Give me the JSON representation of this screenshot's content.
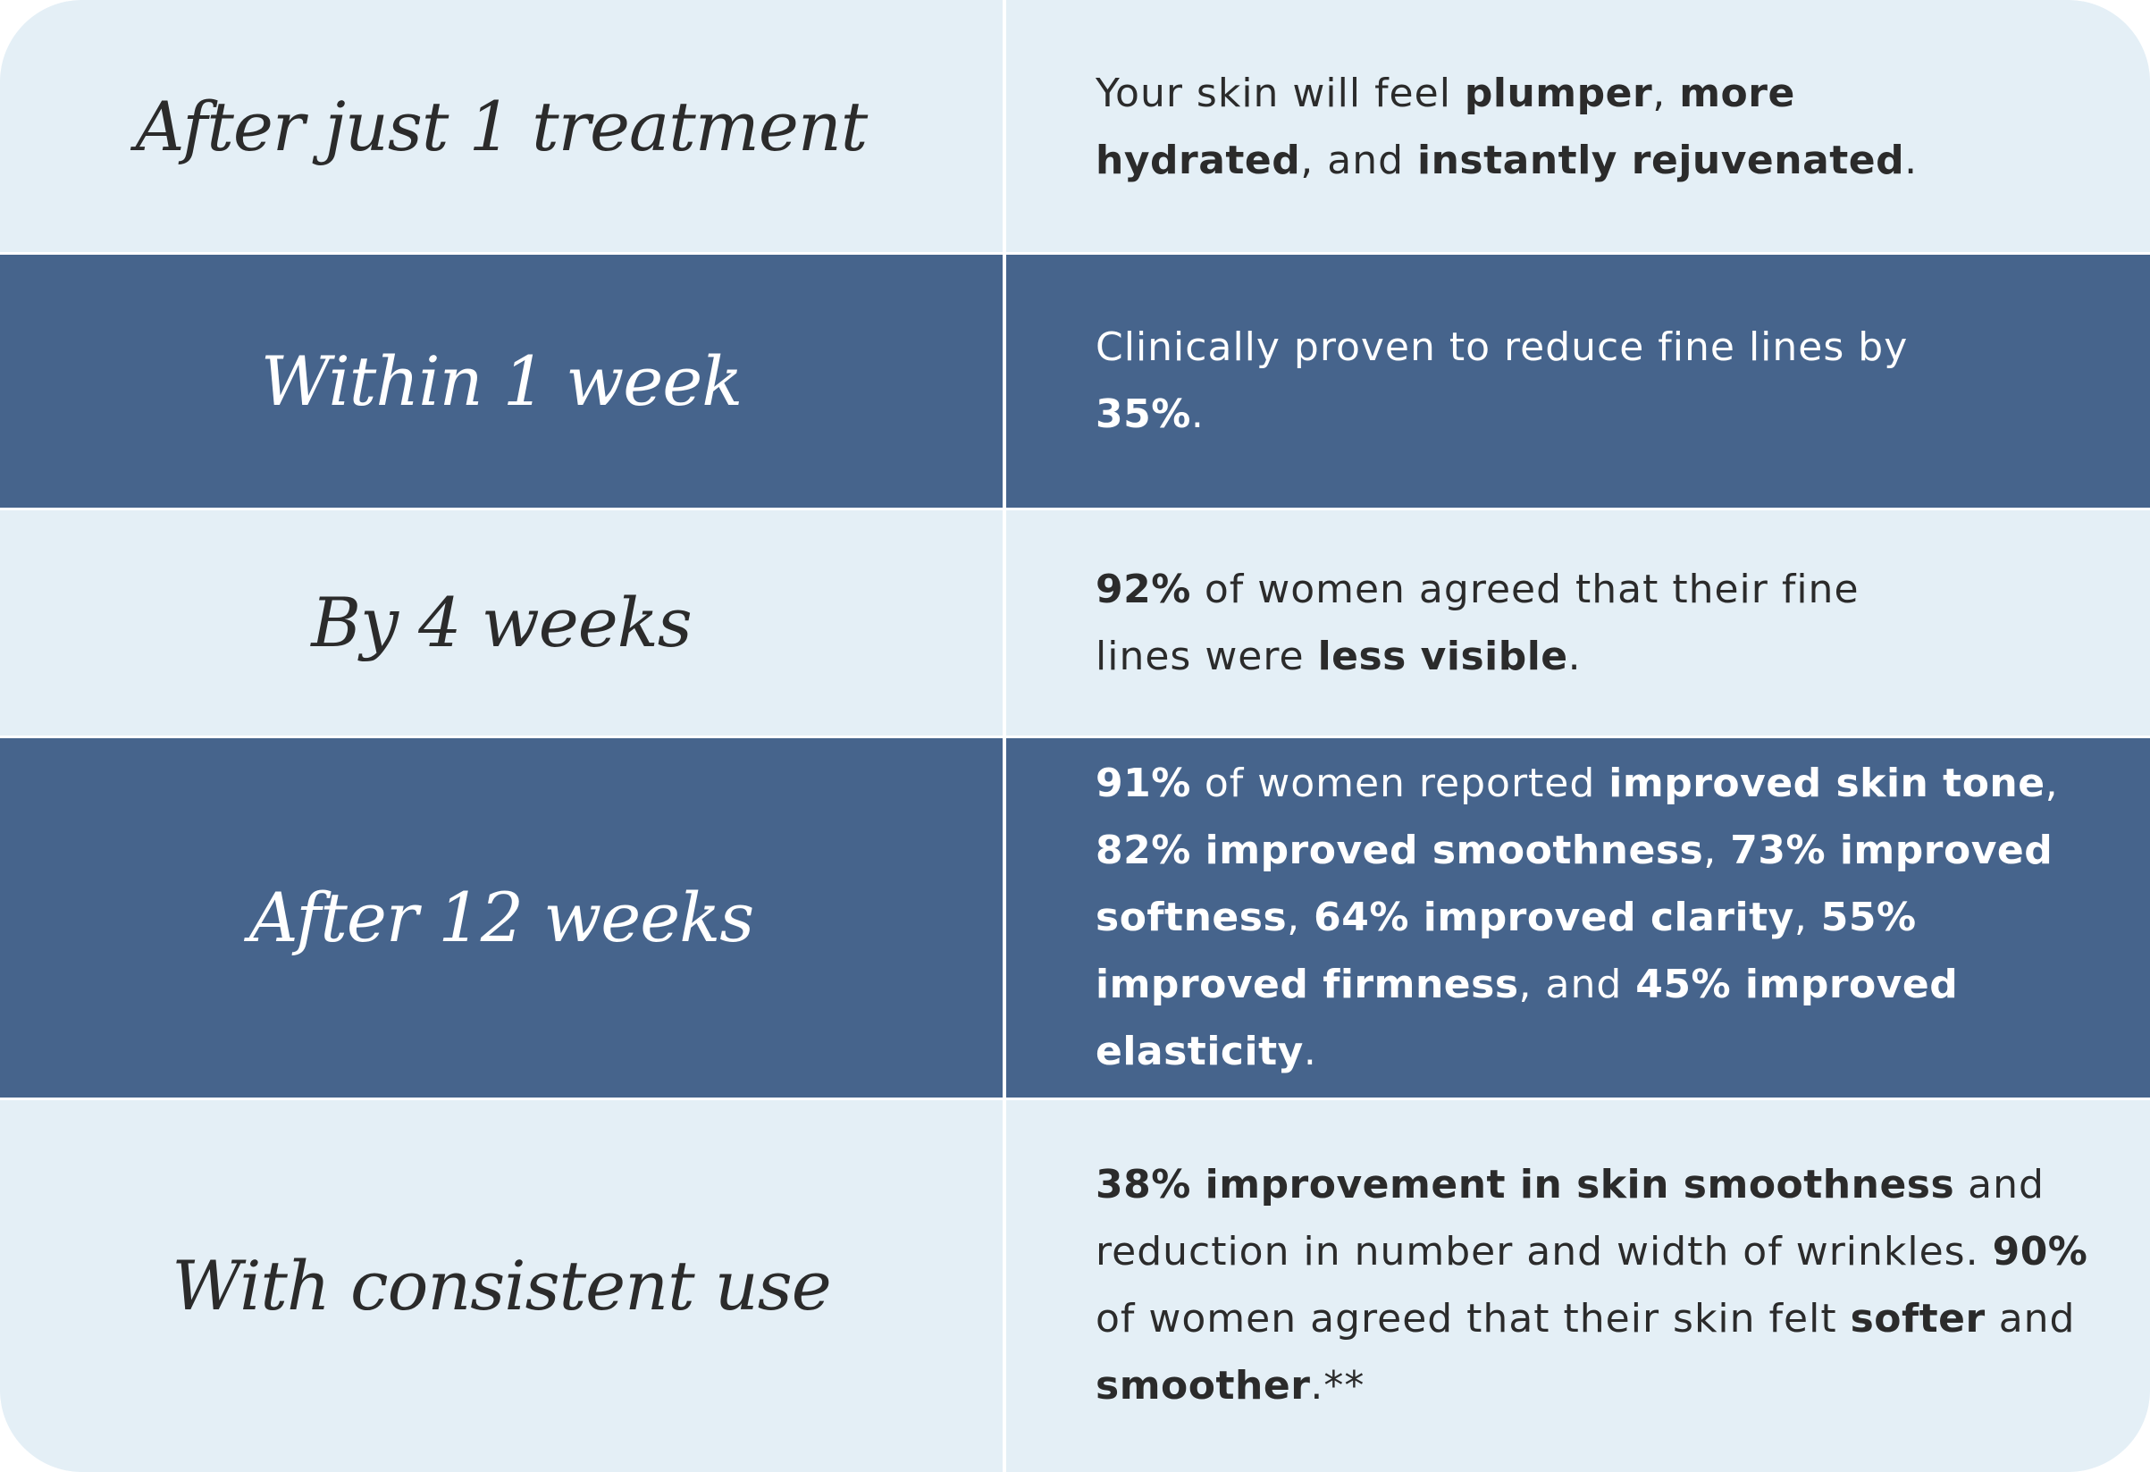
{
  "colors": {
    "light_row": "#e4eff6",
    "dark_row": "#46648c",
    "dark_text": "#2b2b2b",
    "light_text": "#ffffff"
  },
  "rows": [
    {
      "label": "After just 1 treatment",
      "description": [
        {
          "text": "Your skin will feel ",
          "bold": false
        },
        {
          "text": "plumper",
          "bold": true
        },
        {
          "text": ", ",
          "bold": false
        },
        {
          "text": "more hydrated",
          "bold": true
        },
        {
          "text": ", and ",
          "bold": false
        },
        {
          "text": "instantly rejuvenated",
          "bold": true
        },
        {
          "text": ".",
          "bold": false
        }
      ]
    },
    {
      "label": "Within 1 week",
      "description": [
        {
          "text": "Clinically proven to reduce fine lines by ",
          "bold": false
        },
        {
          "text": "35%",
          "bold": true
        },
        {
          "text": ".",
          "bold": false
        }
      ]
    },
    {
      "label": "By 4 weeks",
      "description": [
        {
          "text": "92%",
          "bold": true
        },
        {
          "text": " of women agreed that their fine lines were ",
          "bold": false
        },
        {
          "text": "less visible",
          "bold": true
        },
        {
          "text": ".",
          "bold": false
        }
      ]
    },
    {
      "label": "After 12 weeks",
      "description": [
        {
          "text": "91%",
          "bold": true
        },
        {
          "text": " of women reported ",
          "bold": false
        },
        {
          "text": "improved skin tone",
          "bold": true
        },
        {
          "text": ", ",
          "bold": false
        },
        {
          "text": "82% improved smoothness",
          "bold": true
        },
        {
          "text": ", ",
          "bold": false
        },
        {
          "text": "73% improved softness",
          "bold": true
        },
        {
          "text": ", ",
          "bold": false
        },
        {
          "text": "64% improved clarity",
          "bold": true
        },
        {
          "text": ", ",
          "bold": false
        },
        {
          "text": "55% improved firmness",
          "bold": true
        },
        {
          "text": ", and ",
          "bold": false
        },
        {
          "text": "45% improved elasticity",
          "bold": true
        },
        {
          "text": ".",
          "bold": false
        }
      ]
    },
    {
      "label": "With consistent use",
      "description": [
        {
          "text": "38% improvement in skin smoothness",
          "bold": true
        },
        {
          "text": " and reduction in number and width of wrinkles. ",
          "bold": false
        },
        {
          "text": "90%",
          "bold": true
        },
        {
          "text": " of women agreed that their skin felt ",
          "bold": false
        },
        {
          "text": "softer",
          "bold": true
        },
        {
          "text": " and ",
          "bold": false
        },
        {
          "text": "smoother",
          "bold": true
        },
        {
          "text": ".**",
          "bold": false
        }
      ]
    }
  ]
}
